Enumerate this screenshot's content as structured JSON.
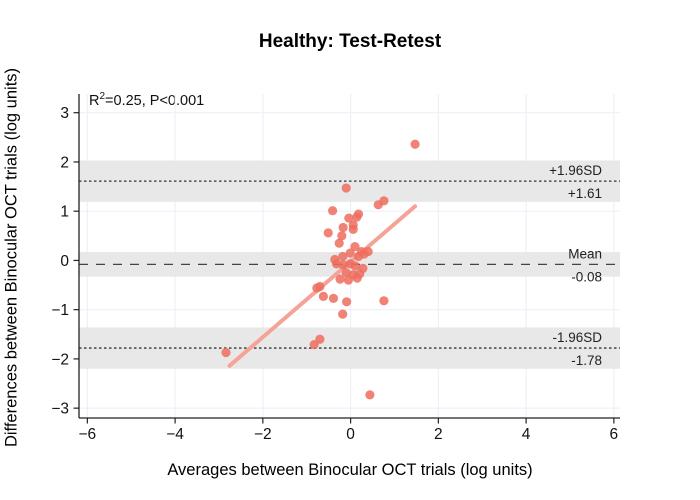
{
  "figure": {
    "title": "Healthy: Test-Retest",
    "annotation": {
      "base": "R",
      "sup": "2",
      "rest": "=0.25, P<0.001"
    },
    "xlabel": "Averages between Binocular OCT trials (log units)",
    "ylabel": "Differences between Binocular OCT trials (log units)"
  },
  "chart_data": {
    "type": "scatter",
    "title": "Healthy: Test-Retest",
    "xlabel": "Averages between Binocular OCT trials (log units)",
    "ylabel": "Differences between Binocular OCT trials (log units)",
    "annotation": "R^2=0.25, P<0.001",
    "xlim": [
      -6.19,
      6.14
    ],
    "ylim": [
      -3.2,
      3.38
    ],
    "grid": true,
    "xticks": {
      "values": [
        -6,
        -4,
        -2,
        0,
        2,
        4,
        6
      ],
      "labels": [
        "−6",
        "−4",
        "−2",
        "0",
        "2",
        "4",
        "6"
      ]
    },
    "yticks": {
      "values": [
        -3,
        -2,
        -1,
        0,
        1,
        2,
        3
      ],
      "labels": [
        "−3",
        "−2",
        "−1",
        "0",
        "1",
        "2",
        "3"
      ]
    },
    "reference_lines": [
      {
        "name": "upper-loa",
        "value": 1.61,
        "style": "dotted",
        "band": [
          1.19,
          2.03
        ],
        "label_above": "+1.96SD",
        "label_below": "+1.61"
      },
      {
        "name": "mean",
        "value": -0.08,
        "style": "dashed",
        "band": [
          -0.33,
          0.17
        ],
        "label_above": "Mean",
        "label_below": "-0.08"
      },
      {
        "name": "lower-loa",
        "value": -1.78,
        "style": "dotted",
        "band": [
          -2.2,
          -1.36
        ],
        "label_above": "-1.96SD",
        "label_below": "-1.78"
      }
    ],
    "regression_line": {
      "x1": -2.76,
      "y1": -2.14,
      "x2": 1.47,
      "y2": 1.1
    },
    "points": [
      [
        1.47,
        2.36
      ],
      [
        -0.1,
        1.47
      ],
      [
        0.63,
        1.13
      ],
      [
        0.76,
        1.21
      ],
      [
        -0.41,
        1.01
      ],
      [
        0.18,
        0.94
      ],
      [
        0.14,
        0.88
      ],
      [
        -0.04,
        0.86
      ],
      [
        0.06,
        0.72
      ],
      [
        -0.17,
        0.67
      ],
      [
        0.06,
        0.63
      ],
      [
        -0.51,
        0.56
      ],
      [
        -0.2,
        0.5
      ],
      [
        -0.26,
        0.35
      ],
      [
        0.1,
        0.28
      ],
      [
        0.25,
        0.18
      ],
      [
        0.4,
        0.18
      ],
      [
        -0.01,
        0.15
      ],
      [
        0.31,
        0.13
      ],
      [
        -0.18,
        0.08
      ],
      [
        0.18,
        0.08
      ],
      [
        -0.36,
        0.02
      ],
      [
        -0.32,
        -0.07
      ],
      [
        -0.01,
        -0.07
      ],
      [
        -0.17,
        -0.09
      ],
      [
        0.1,
        -0.11
      ],
      [
        0.28,
        -0.16
      ],
      [
        -0.1,
        -0.25
      ],
      [
        0.06,
        -0.29
      ],
      [
        0.21,
        -0.27
      ],
      [
        -0.24,
        -0.38
      ],
      [
        -0.05,
        -0.4
      ],
      [
        0.15,
        -0.36
      ],
      [
        -0.7,
        -0.53
      ],
      [
        -0.77,
        -0.56
      ],
      [
        -0.62,
        -0.73
      ],
      [
        -0.39,
        -0.77
      ],
      [
        -0.09,
        -0.84
      ],
      [
        0.76,
        -0.82
      ],
      [
        -0.18,
        -1.09
      ],
      [
        -0.83,
        -1.71
      ],
      [
        -0.7,
        -1.6
      ],
      [
        -2.84,
        -1.87
      ],
      [
        0.44,
        -2.73
      ]
    ],
    "colors": {
      "point": "#ed6d5e",
      "regression_line": "#f5a398",
      "band": "#e8e8e9",
      "grid": "#eef0f8",
      "axis": "#222222",
      "ref_line_dashed": "#444444",
      "ref_line_dotted": "#333333",
      "tick_label": "#111111",
      "band_label": "#222222"
    },
    "legend": null
  }
}
